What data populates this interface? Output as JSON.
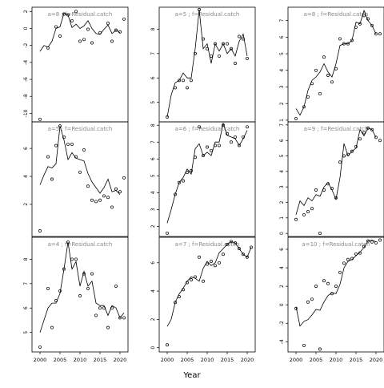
{
  "xlabel": "Year",
  "chart_data": [
    {
      "type": "scatter",
      "title": "a=8 ; f=Residual.catch",
      "xlim": [
        1998,
        2022
      ],
      "ylim": [
        -11,
        2.5
      ],
      "yticks": [
        -10,
        -8,
        -6,
        -4,
        -2,
        0,
        2
      ],
      "x": [
        2000,
        2001,
        2002,
        2003,
        2004,
        2005,
        2006,
        2007,
        2008,
        2009,
        2010,
        2011,
        2012,
        2013,
        2014,
        2015,
        2016,
        2017,
        2018,
        2019,
        2020,
        2021
      ],
      "points": [
        -10.7,
        null,
        -2.3,
        null,
        0.2,
        -0.9,
        1.7,
        1.6,
        0.9,
        2.0,
        -1.5,
        -1.3,
        -0.1,
        -1.7,
        null,
        -0.5,
        null,
        0.6,
        -1.5,
        -0.2,
        -0.4,
        1.1
      ],
      "line": [
        -2.7,
        -2.0,
        -2.2,
        -1.5,
        0.0,
        0.2,
        1.8,
        1.6,
        0.1,
        0.5,
        0.0,
        0.3,
        0.9,
        0.0,
        -0.6,
        -0.7,
        -0.1,
        0.4,
        -0.6,
        -0.2,
        -0.5,
        null
      ]
    },
    {
      "type": "scatter",
      "title": "a=5 ; f=Residual.catch",
      "xlim": [
        1998,
        2022
      ],
      "ylim": [
        4.2,
        8.9
      ],
      "yticks": [
        5,
        6,
        7,
        8
      ],
      "x": [
        2000,
        2001,
        2002,
        2003,
        2004,
        2005,
        2006,
        2007,
        2008,
        2009,
        2010,
        2011,
        2012,
        2013,
        2014,
        2015,
        2016,
        2017,
        2018,
        2019,
        2020,
        2021
      ],
      "points": [
        4.4,
        null,
        5.6,
        5.9,
        5.9,
        5.6,
        5.9,
        7.0,
        8.8,
        7.6,
        7.2,
        6.9,
        7.4,
        6.9,
        7.4,
        7.4,
        7.2,
        6.6,
        7.7,
        7.6,
        6.8,
        null
      ],
      "line": [
        4.4,
        5.3,
        5.8,
        5.9,
        6.2,
        6.0,
        6.0,
        7.2,
        8.8,
        7.2,
        7.4,
        6.6,
        7.4,
        7.1,
        7.4,
        7.0,
        7.2,
        6.9,
        7.5,
        7.8,
        6.9,
        null
      ]
    },
    {
      "type": "scatter",
      "title": "a=8 ; f=Residual.catch",
      "xlim": [
        1998,
        2022
      ],
      "ylim": [
        0.9,
        7.8
      ],
      "yticks": [
        1,
        2,
        3,
        4,
        5,
        6,
        7
      ],
      "x": [
        2000,
        2001,
        2002,
        2003,
        2004,
        2005,
        2006,
        2007,
        2008,
        2009,
        2010,
        2011,
        2012,
        2013,
        2014,
        2015,
        2016,
        2017,
        2018,
        2019,
        2020,
        2021
      ],
      "points": [
        1.1,
        null,
        1.8,
        2.4,
        3.2,
        4.0,
        2.6,
        4.8,
        3.7,
        3.3,
        4.1,
        5.9,
        5.6,
        5.6,
        5.8,
        6.6,
        6.8,
        7.3,
        7.1,
        6.7,
        6.2,
        6.2
      ],
      "line": [
        1.7,
        1.3,
        1.8,
        2.8,
        3.4,
        3.6,
        3.9,
        4.4,
        3.9,
        3.6,
        4.4,
        5.5,
        5.6,
        5.6,
        5.8,
        6.9,
        6.8,
        7.6,
        7.0,
        6.7,
        6.2,
        null
      ]
    },
    {
      "type": "scatter",
      "title": "a=5 ; f=Residual.catch",
      "xlim": [
        1998,
        2022
      ],
      "ylim": [
        -0.3,
        7.9
      ],
      "yticks": [
        2,
        4,
        6
      ],
      "x": [
        2000,
        2001,
        2002,
        2003,
        2004,
        2005,
        2006,
        2007,
        2008,
        2009,
        2010,
        2011,
        2012,
        2013,
        2014,
        2015,
        2016,
        2017,
        2018,
        2019,
        2020,
        2021
      ],
      "points": [
        0.1,
        null,
        5.4,
        3.8,
        6.2,
        7.6,
        6.8,
        6.3,
        6.3,
        5.4,
        4.3,
        5.9,
        3.3,
        2.3,
        2.2,
        2.3,
        2.6,
        2.5,
        1.8,
        3.1,
        2.9,
        3.9
      ],
      "line": [
        3.4,
        4.1,
        4.7,
        4.6,
        4.9,
        7.6,
        6.6,
        5.2,
        5.7,
        5.3,
        5.2,
        5.1,
        4.2,
        3.6,
        3.2,
        2.8,
        3.2,
        3.8,
        2.9,
        3.0,
        2.7,
        null
      ]
    },
    {
      "type": "scatter",
      "title": "a=6 ; f=Residual.catch",
      "xlim": [
        1998,
        2022
      ],
      "ylim": [
        1.4,
        8.2
      ],
      "yticks": [
        2,
        3,
        4,
        5,
        6,
        7,
        8
      ],
      "x": [
        2000,
        2001,
        2002,
        2003,
        2004,
        2005,
        2006,
        2007,
        2008,
        2009,
        2010,
        2011,
        2012,
        2013,
        2014,
        2015,
        2016,
        2017,
        2018,
        2019,
        2020,
        2021
      ],
      "points": [
        1.6,
        null,
        3.9,
        4.6,
        4.7,
        5.2,
        5.3,
        6.1,
        7.9,
        6.2,
        6.7,
        6.5,
        6.8,
        6.8,
        8.0,
        7.5,
        7.0,
        7.3,
        6.8,
        7.3,
        7.9,
        null
      ],
      "line": [
        2.2,
        3.0,
        3.9,
        4.6,
        4.9,
        5.4,
        5.1,
        6.6,
        6.9,
        6.2,
        6.4,
        6.2,
        7.0,
        7.0,
        8.1,
        7.4,
        7.3,
        7.2,
        6.8,
        7.2,
        7.7,
        null
      ]
    },
    {
      "type": "scatter",
      "title": "a=9 ; f=Residual.catch",
      "xlim": [
        1998,
        2022
      ],
      "ylim": [
        -0.2,
        7.2
      ],
      "yticks": [
        0,
        1,
        2,
        3,
        4,
        5,
        6,
        7
      ],
      "x": [
        2000,
        2001,
        2002,
        2003,
        2004,
        2005,
        2006,
        2007,
        2008,
        2009,
        2010,
        2011,
        2012,
        2013,
        2014,
        2015,
        2016,
        2017,
        2018,
        2019,
        2020,
        2021
      ],
      "points": [
        0.9,
        null,
        1.2,
        1.4,
        1.6,
        2.8,
        0.0,
        2.8,
        3.2,
        2.9,
        2.3,
        4.6,
        5.0,
        5.1,
        5.3,
        5.6,
        6.1,
        6.5,
        6.8,
        6.7,
        6.2,
        6.0
      ],
      "line": [
        1.2,
        2.1,
        1.8,
        2.3,
        2.1,
        2.5,
        2.4,
        3.0,
        3.3,
        2.8,
        2.2,
        3.6,
        5.8,
        5.0,
        5.3,
        5.5,
        6.7,
        6.3,
        6.8,
        6.7,
        6.2,
        null
      ]
    },
    {
      "type": "scatter",
      "title": "a=4 ; f=Residual.catch",
      "xlim": [
        1998,
        2022
      ],
      "ylim": [
        4.2,
        8.9
      ],
      "yticks": [
        5,
        6,
        7,
        8
      ],
      "x": [
        2000,
        2001,
        2002,
        2003,
        2004,
        2005,
        2006,
        2007,
        2008,
        2009,
        2010,
        2011,
        2012,
        2013,
        2014,
        2015,
        2016,
        2017,
        2018,
        2019,
        2020,
        2021
      ],
      "points": [
        4.4,
        null,
        6.8,
        5.2,
        6.3,
        6.7,
        7.6,
        8.7,
        8.0,
        8.0,
        6.5,
        7.4,
        6.8,
        7.4,
        5.7,
        6.0,
        6.0,
        5.2,
        6.0,
        6.9,
        5.6,
        5.6
      ],
      "line": [
        5.0,
        5.5,
        6.0,
        6.2,
        6.2,
        6.6,
        7.6,
        8.7,
        7.6,
        7.9,
        6.9,
        7.5,
        6.9,
        7.1,
        6.2,
        6.1,
        6.1,
        5.7,
        6.1,
        6.0,
        5.6,
        5.8
      ]
    },
    {
      "type": "scatter",
      "title": "a=7 ; f=Residual.catch",
      "xlim": [
        1998,
        2022
      ],
      "ylim": [
        -0.3,
        7.8
      ],
      "yticks": [
        0,
        2,
        4,
        6
      ],
      "x": [
        2000,
        2001,
        2002,
        2003,
        2004,
        2005,
        2006,
        2007,
        2008,
        2009,
        2010,
        2011,
        2012,
        2013,
        2014,
        2015,
        2016,
        2017,
        2018,
        2019,
        2020,
        2021
      ],
      "points": [
        0.2,
        null,
        3.2,
        3.6,
        4.1,
        4.6,
        4.8,
        5.0,
        6.4,
        4.7,
        5.9,
        6.1,
        5.8,
        6.0,
        6.6,
        7.3,
        7.5,
        7.4,
        7.0,
        6.6,
        6.4,
        7.1
      ],
      "line": [
        1.5,
        2.0,
        3.2,
        3.8,
        4.2,
        4.7,
        5.0,
        4.9,
        4.7,
        5.6,
        6.1,
        5.8,
        6.0,
        6.7,
        7.0,
        7.3,
        7.5,
        7.4,
        7.0,
        6.6,
        6.4,
        7.1
      ]
    },
    {
      "type": "scatter",
      "title": "a=10 ; f=Residual.catch",
      "xlim": [
        1998,
        2022
      ],
      "ylim": [
        -5.1,
        7.3
      ],
      "yticks": [
        -4,
        -2,
        0,
        2,
        4,
        6
      ],
      "x": [
        2000,
        2001,
        2002,
        2003,
        2004,
        2005,
        2006,
        2007,
        2008,
        2009,
        2010,
        2011,
        2012,
        2013,
        2014,
        2015,
        2016,
        2017,
        2018,
        2019,
        2020,
        2021
      ],
      "points": [
        -0.4,
        null,
        -4.4,
        0.3,
        0.6,
        2.0,
        -4.8,
        2.6,
        2.3,
        1.2,
        2.0,
        3.5,
        4.5,
        4.9,
        5.0,
        5.5,
        5.6,
        6.3,
        6.9,
        6.8,
        6.7,
        7.0
      ],
      "line": [
        -0.2,
        -2.3,
        -1.8,
        -1.6,
        -1.1,
        -0.5,
        -0.6,
        0.3,
        1.0,
        1.3,
        1.2,
        2.2,
        4.0,
        4.7,
        4.9,
        5.3,
        5.7,
        6.2,
        6.9,
        7.0,
        6.8,
        null
      ]
    }
  ]
}
